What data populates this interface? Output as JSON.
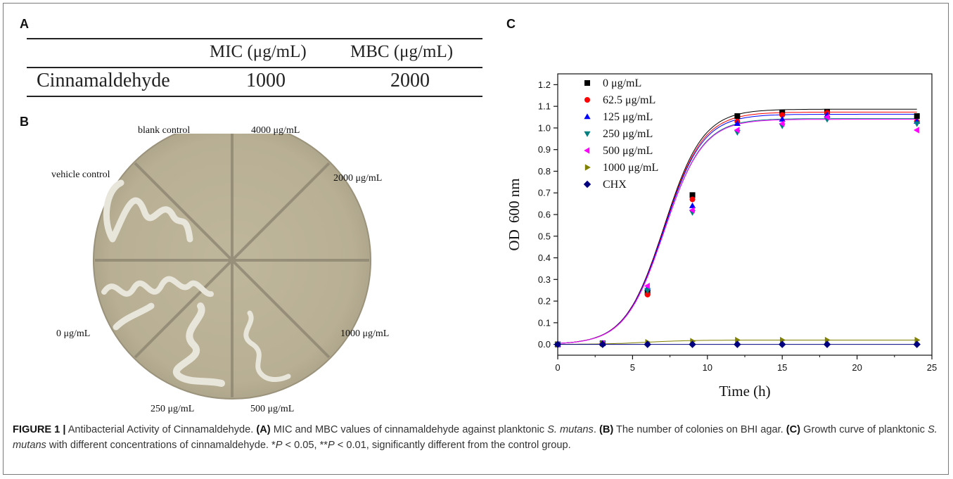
{
  "panels": {
    "a": "A",
    "b": "B",
    "c": "C"
  },
  "table": {
    "headers": [
      "MIC (μg/mL)",
      "MBC (μg/mL)"
    ],
    "rows": [
      {
        "compound": "Cinnamaldehyde",
        "mic": "1000",
        "mbc": "2000"
      }
    ]
  },
  "plate": {
    "labels": {
      "blank": "blank control",
      "c4000": "4000 μg/mL",
      "c2000": "2000 μg/mL",
      "c1000": "1000 μg/mL",
      "c500": "500 μg/mL",
      "c250": "250 μg/mL",
      "c0": "0 μg/mL",
      "vehicle": "vehicle control"
    },
    "colors": {
      "agar": "#bdb49a",
      "colony": "#e8e5da"
    }
  },
  "chart_data": {
    "type": "scatter",
    "xlabel": "Time (h)",
    "ylabel": "OD",
    "ylabel_sub": "600 nm",
    "xlim": [
      0,
      25
    ],
    "ylim": [
      -0.05,
      1.25
    ],
    "xticks": [
      "0",
      "5",
      "10",
      "15",
      "20",
      "25"
    ],
    "yticks": [
      "0.0",
      "0.1",
      "0.2",
      "0.3",
      "0.4",
      "0.5",
      "0.6",
      "0.7",
      "0.8",
      "0.9",
      "1.0",
      "1.1",
      "1.2"
    ],
    "legend_position": "top-left",
    "x": [
      0,
      3,
      6,
      9,
      12,
      15,
      18,
      24
    ],
    "series": [
      {
        "name": "0 μg/mL",
        "marker": "square",
        "color": "#000000",
        "y": [
          0,
          0.005,
          0.24,
          0.69,
          1.055,
          1.07,
          1.075,
          1.055
        ]
      },
      {
        "name": "62.5 μg/mL",
        "marker": "circle",
        "color": "#ff0000",
        "y": [
          0,
          0.005,
          0.23,
          0.67,
          1.03,
          1.06,
          1.07,
          1.03
        ]
      },
      {
        "name": "125 μg/mL",
        "marker": "triangle-up",
        "color": "#0000ff",
        "y": [
          0,
          0.005,
          0.26,
          0.64,
          1.02,
          1.04,
          1.06,
          1.03
        ]
      },
      {
        "name": "250 μg/mL",
        "marker": "triangle-down",
        "color": "#008080",
        "y": [
          0,
          0.005,
          0.25,
          0.61,
          0.98,
          1.01,
          1.04,
          1.02
        ]
      },
      {
        "name": "500 μg/mL",
        "marker": "triangle-left",
        "color": "#ff00ff",
        "y": [
          0,
          0.005,
          0.27,
          0.62,
          0.99,
          1.02,
          1.05,
          0.99
        ]
      },
      {
        "name": "1000 μg/mL",
        "marker": "triangle-right",
        "color": "#808000",
        "y": [
          0,
          0.002,
          0.01,
          0.015,
          0.02,
          0.02,
          0.02,
          0.02
        ]
      },
      {
        "name": "CHX",
        "marker": "diamond",
        "color": "#000080",
        "y": [
          0,
          0,
          0,
          0,
          0,
          0,
          0,
          0
        ]
      }
    ]
  },
  "caption": {
    "label": "FIGURE 1 |",
    "title": "Antibacterial Activity of Cinnamaldehyde.",
    "a_label": "(A)",
    "a_text1": "MIC and MBC values of cinnamaldehyde against planktonic",
    "species": "S. mutans",
    "a_text2": ".",
    "b_label": "(B)",
    "b_text": "The number of colonies on BHI agar.",
    "c_label": "(C)",
    "c_text1": "Growth curve of planktonic",
    "c_text2": "with different concentrations of cinnamaldehyde. *",
    "p": "P",
    "p1": " < 0.05, **",
    "p2": " < 0.01, significantly different from the control group."
  }
}
